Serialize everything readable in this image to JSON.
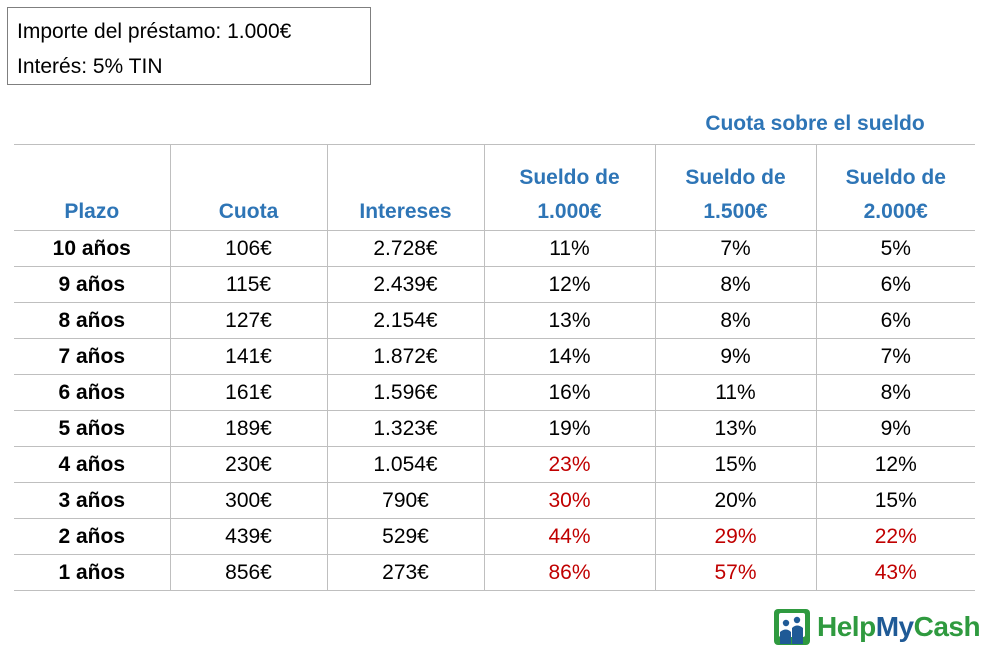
{
  "info": {
    "loan_amount": "Importe del préstamo: 1.000€",
    "interest": "Interés: 5% TIN"
  },
  "group_header": "Cuota sobre el sueldo",
  "columns": [
    "Plazo",
    "Cuota",
    "Intereses",
    "Sueldo de 1.000€",
    "Sueldo de 1.500€",
    "Sueldo de 2.000€"
  ],
  "rows": [
    [
      "10 años",
      "106€",
      "2.728€",
      "11%",
      "7%",
      "5%"
    ],
    [
      "9 años",
      "115€",
      "2.439€",
      "12%",
      "8%",
      "6%"
    ],
    [
      "8 años",
      "127€",
      "2.154€",
      "13%",
      "8%",
      "6%"
    ],
    [
      "7 años",
      "141€",
      "1.872€",
      "14%",
      "9%",
      "7%"
    ],
    [
      "6 años",
      "161€",
      "1.596€",
      "16%",
      "11%",
      "8%"
    ],
    [
      "5 años",
      "189€",
      "1.323€",
      "19%",
      "13%",
      "9%"
    ],
    [
      "4 años",
      "230€",
      "1.054€",
      "23%",
      "15%",
      "12%"
    ],
    [
      "3 años",
      "300€",
      "790€",
      "30%",
      "20%",
      "15%"
    ],
    [
      "2 años",
      "439€",
      "529€",
      "44%",
      "29%",
      "22%"
    ],
    [
      "1 años",
      "856€",
      "273€",
      "86%",
      "57%",
      "43%"
    ]
  ],
  "highlight": {
    "color": "#c00000",
    "cells": [
      [
        6,
        3
      ],
      [
        7,
        3
      ],
      [
        8,
        3
      ],
      [
        8,
        4
      ],
      [
        8,
        5
      ],
      [
        9,
        3
      ],
      [
        9,
        4
      ],
      [
        9,
        5
      ]
    ]
  },
  "colors": {
    "header_blue": "#2e75b6"
  },
  "logo": {
    "text_help": "Help",
    "text_my": "My",
    "text_cash": "Cash",
    "icon": "helpmycash-logo-icon"
  }
}
